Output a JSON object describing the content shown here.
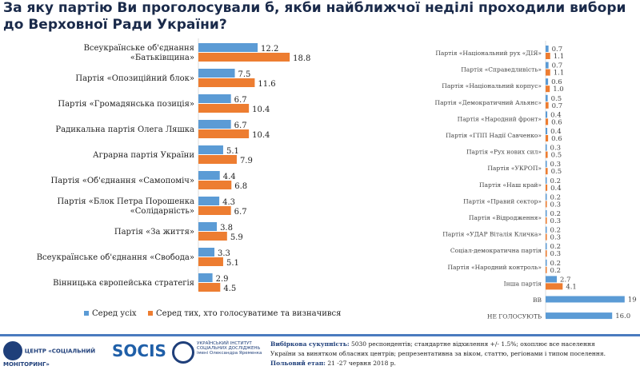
{
  "title_line1": "За яку партію Ви проголосували б, якби найближчої неділі проходили вибори",
  "title_line2": "до Верховної Ради України?",
  "colors": {
    "all": "#5b9bd5",
    "voters": "#ed7d31"
  },
  "chart_data": [
    {
      "type": "bar",
      "orientation": "horizontal",
      "categories": [
        "Всеукраїнське об'єднання «Батьківщина»",
        "Партія «Опозиційний блок»",
        "Партія «Громадянська позиція»",
        "Радикальна партія Олега Ляшка",
        "Аграрна партія України",
        "Партія «Об'єднання «Самопоміч»",
        "Партія «Блок Петра Порошенка «Солідарність»",
        "Партія «За життя»",
        "Всеукраїнське об'єднання «Свобода»",
        "Вінницька європейська стратегія"
      ],
      "series": [
        {
          "name": "Серед усіх",
          "values": [
            12.2,
            7.5,
            6.7,
            6.7,
            5.1,
            4.4,
            4.3,
            3.8,
            3.3,
            2.9
          ]
        },
        {
          "name": "Серед тих, хто голосуватиме та визначився",
          "values": [
            18.8,
            11.6,
            10.4,
            10.4,
            7.9,
            6.8,
            6.7,
            5.9,
            5.1,
            4.5
          ]
        }
      ],
      "legend": "bottom"
    },
    {
      "type": "bar",
      "orientation": "horizontal",
      "categories": [
        "Партія «Національний рух «ДІЯ»",
        "Партія «Справедливість»",
        "Партія «Національний корпус»",
        "Партія «Демократичний Альянс»",
        "Партія «Народний фронт»",
        "Партія «ГПП Надії Савченко»",
        "Партія «Рух нових сил»",
        "Партія «УКРОП»",
        "Партія «Наш край»",
        "Партія «Правий сектор»",
        "Партія «Відродження»",
        "Партія «УДАР Віталія Кличка»",
        "Соціал-демократична партія",
        "Партія «Народний контроль»",
        "Інша партія",
        "ВВ",
        "НЕ ГОЛОСУЮТЬ"
      ],
      "series": [
        {
          "name": "Серед усіх",
          "values": [
            0.7,
            0.7,
            0.6,
            0.5,
            0.4,
            0.4,
            0.3,
            0.3,
            0.2,
            0.2,
            0.2,
            0.2,
            0.2,
            0.2,
            2.7,
            19,
            16.0
          ]
        },
        {
          "name": "Серед тих, хто голосуватиме та визначився",
          "values": [
            1.1,
            1.1,
            1.0,
            0.7,
            0.6,
            0.6,
            0.5,
            0.5,
            0.4,
            0.3,
            0.3,
            0.3,
            0.3,
            0.2,
            4.1,
            null,
            null
          ]
        }
      ]
    }
  ],
  "footer": {
    "logo1": "ЦЕНТР «СОЦІАЛЬНИЙ МОНІТОРИНГ»",
    "logo2": "SOCIS",
    "logo3": "УКРАЇНСЬКИЙ ІНСТИТУТ СОЦІАЛЬНИХ ДОСЛІДЖЕНЬ імені Олександра Яременка",
    "sample_label": "Вибіркова сукупність:",
    "sample_text": "5030 респондентів; стандартне відхилення +/- 1.5%; охоплює все населення",
    "sample_text2": "України за винятком обласних центрів; репрезентативна за віком, статтю, регіонами і типом поселення.",
    "field_label": "Польовий етап:",
    "field_text": "21 -27 червня 2018 р."
  }
}
